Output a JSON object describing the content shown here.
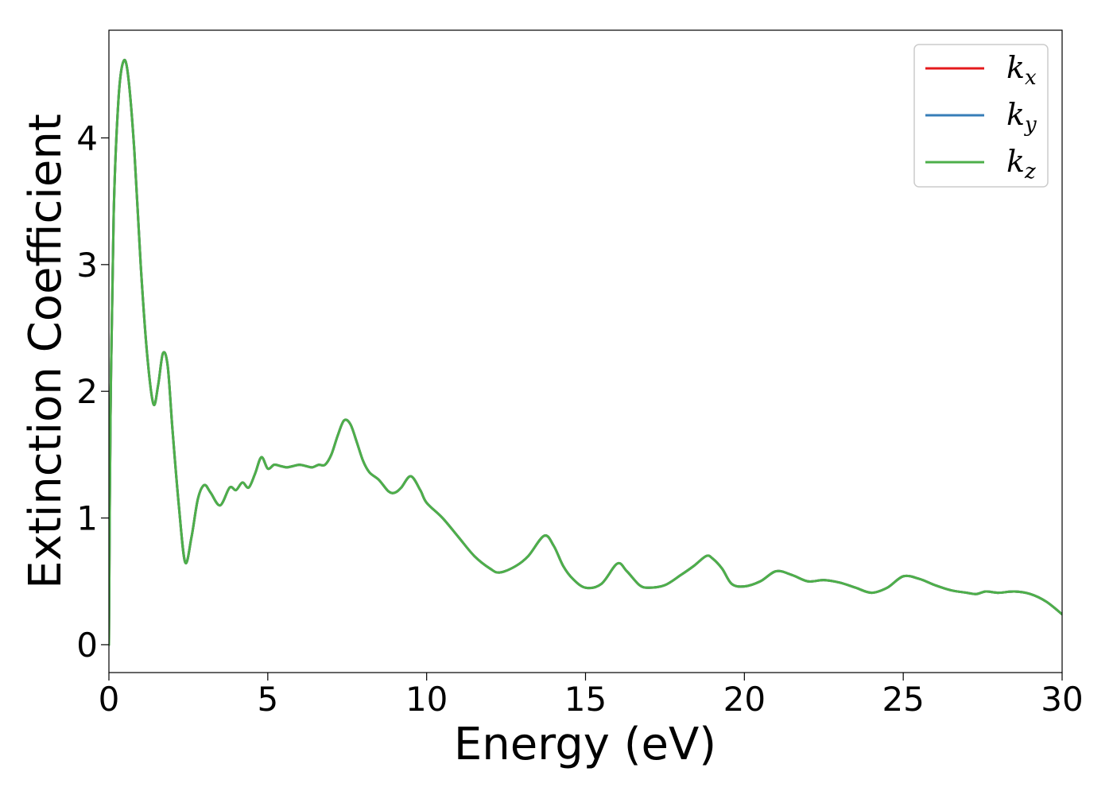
{
  "chart_data": {
    "type": "line",
    "title": "",
    "xlabel": "Energy (eV)",
    "ylabel": "Extinction Coefficient",
    "xlim": [
      0,
      30
    ],
    "ylim": [
      -0.22,
      4.85
    ],
    "xticks": [
      0,
      5,
      10,
      15,
      20,
      25,
      30
    ],
    "yticks": [
      0,
      1,
      2,
      3,
      4
    ],
    "grid": false,
    "legend_position": "top-right",
    "legend": [
      {
        "base": "k",
        "sub": "x",
        "color": "#e41a1c"
      },
      {
        "base": "k",
        "sub": "y",
        "color": "#377eb8"
      },
      {
        "base": "k",
        "sub": "z",
        "color": "#4daf4a"
      }
    ],
    "x": [
      0,
      0.05,
      0.15,
      0.3,
      0.45,
      0.6,
      0.8,
      1.0,
      1.2,
      1.4,
      1.55,
      1.7,
      1.85,
      2.0,
      2.2,
      2.4,
      2.6,
      2.8,
      3.0,
      3.2,
      3.5,
      3.8,
      4.0,
      4.2,
      4.4,
      4.6,
      4.8,
      5.0,
      5.2,
      5.4,
      5.6,
      5.8,
      6.0,
      6.2,
      6.4,
      6.6,
      6.8,
      7.0,
      7.2,
      7.4,
      7.6,
      7.8,
      8.0,
      8.2,
      8.5,
      8.8,
      9.0,
      9.2,
      9.5,
      9.8,
      10.0,
      10.5,
      11.0,
      11.5,
      12.0,
      12.3,
      12.8,
      13.2,
      13.7,
      14.0,
      14.3,
      14.6,
      15.0,
      15.5,
      16.0,
      16.3,
      16.7,
      17.0,
      17.5,
      18.0,
      18.4,
      18.8,
      19.0,
      19.3,
      19.6,
      20.0,
      20.5,
      21.0,
      21.5,
      22.0,
      22.5,
      23.0,
      23.5,
      24.0,
      24.5,
      25.0,
      25.5,
      26.0,
      26.5,
      27.0,
      27.3,
      27.6,
      28.0,
      28.5,
      29.0,
      29.5,
      30.0
    ],
    "series": [
      {
        "name": "k_x",
        "values": [
          0.0,
          1.8,
          3.4,
          4.3,
          4.6,
          4.5,
          3.9,
          3.0,
          2.3,
          1.9,
          2.05,
          2.3,
          2.2,
          1.7,
          1.1,
          0.65,
          0.85,
          1.15,
          1.26,
          1.2,
          1.1,
          1.24,
          1.22,
          1.28,
          1.24,
          1.35,
          1.48,
          1.39,
          1.42,
          1.41,
          1.4,
          1.41,
          1.42,
          1.41,
          1.4,
          1.42,
          1.42,
          1.5,
          1.65,
          1.77,
          1.74,
          1.6,
          1.45,
          1.36,
          1.3,
          1.21,
          1.2,
          1.24,
          1.33,
          1.22,
          1.12,
          1.0,
          0.85,
          0.7,
          0.6,
          0.57,
          0.62,
          0.7,
          0.86,
          0.78,
          0.62,
          0.52,
          0.45,
          0.48,
          0.64,
          0.58,
          0.47,
          0.45,
          0.47,
          0.55,
          0.62,
          0.7,
          0.68,
          0.6,
          0.48,
          0.46,
          0.5,
          0.58,
          0.55,
          0.5,
          0.51,
          0.49,
          0.45,
          0.41,
          0.45,
          0.54,
          0.52,
          0.47,
          0.43,
          0.41,
          0.4,
          0.42,
          0.41,
          0.42,
          0.4,
          0.34,
          0.24
        ]
      },
      {
        "name": "k_y",
        "values": [
          0.0,
          1.8,
          3.4,
          4.3,
          4.6,
          4.5,
          3.9,
          3.0,
          2.3,
          1.9,
          2.05,
          2.3,
          2.2,
          1.7,
          1.1,
          0.65,
          0.85,
          1.15,
          1.26,
          1.2,
          1.1,
          1.24,
          1.22,
          1.28,
          1.24,
          1.35,
          1.48,
          1.39,
          1.42,
          1.41,
          1.4,
          1.41,
          1.42,
          1.41,
          1.4,
          1.42,
          1.42,
          1.5,
          1.65,
          1.77,
          1.74,
          1.6,
          1.45,
          1.36,
          1.3,
          1.21,
          1.2,
          1.24,
          1.33,
          1.22,
          1.12,
          1.0,
          0.85,
          0.7,
          0.6,
          0.57,
          0.62,
          0.7,
          0.86,
          0.78,
          0.62,
          0.52,
          0.45,
          0.48,
          0.64,
          0.58,
          0.47,
          0.45,
          0.47,
          0.55,
          0.62,
          0.7,
          0.68,
          0.6,
          0.48,
          0.46,
          0.5,
          0.58,
          0.55,
          0.5,
          0.51,
          0.49,
          0.45,
          0.41,
          0.45,
          0.54,
          0.52,
          0.47,
          0.43,
          0.41,
          0.4,
          0.42,
          0.41,
          0.42,
          0.4,
          0.34,
          0.24
        ]
      },
      {
        "name": "k_z",
        "values": [
          0.0,
          1.8,
          3.4,
          4.3,
          4.6,
          4.5,
          3.9,
          3.0,
          2.3,
          1.9,
          2.05,
          2.3,
          2.2,
          1.7,
          1.1,
          0.65,
          0.85,
          1.15,
          1.26,
          1.2,
          1.1,
          1.24,
          1.22,
          1.28,
          1.24,
          1.35,
          1.48,
          1.39,
          1.42,
          1.41,
          1.4,
          1.41,
          1.42,
          1.41,
          1.4,
          1.42,
          1.42,
          1.5,
          1.65,
          1.77,
          1.74,
          1.6,
          1.45,
          1.36,
          1.3,
          1.21,
          1.2,
          1.24,
          1.33,
          1.22,
          1.12,
          1.0,
          0.85,
          0.7,
          0.6,
          0.57,
          0.62,
          0.7,
          0.86,
          0.78,
          0.62,
          0.52,
          0.45,
          0.48,
          0.64,
          0.58,
          0.47,
          0.45,
          0.47,
          0.55,
          0.62,
          0.7,
          0.68,
          0.6,
          0.48,
          0.46,
          0.5,
          0.58,
          0.55,
          0.5,
          0.51,
          0.49,
          0.45,
          0.41,
          0.45,
          0.54,
          0.52,
          0.47,
          0.43,
          0.41,
          0.4,
          0.42,
          0.41,
          0.42,
          0.4,
          0.34,
          0.24
        ]
      }
    ]
  }
}
